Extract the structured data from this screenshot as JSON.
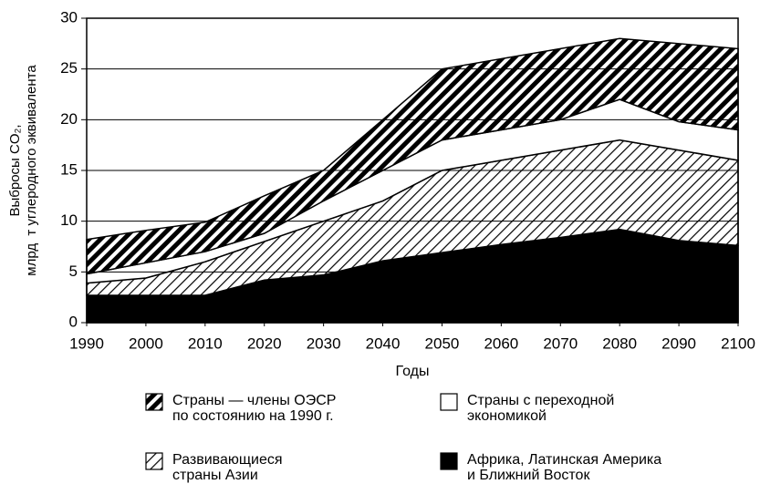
{
  "chart_data": {
    "type": "stacked-area",
    "x_label": "Годы",
    "y_label": "Выбросы CO₂,\nмлрд  т углеродного эквивалента",
    "x": [
      1990,
      2000,
      2010,
      2020,
      2030,
      2040,
      2050,
      2060,
      2070,
      2080,
      2090,
      2100
    ],
    "series": [
      {
        "name": "Африка, Латинская Америка\nи Ближний Восток",
        "color": "#000000",
        "pattern": "solid",
        "values": [
          2.7,
          2.7,
          2.7,
          4.2,
          4.7,
          6.1,
          6.9,
          7.7,
          8.4,
          9.2,
          8.1,
          7.6
        ]
      },
      {
        "name": "Развивающиеся\nстраны Азии",
        "color": "#000000",
        "pattern": "sparse-hatch",
        "values": [
          1.2,
          1.7,
          3.3,
          3.8,
          5.3,
          5.9,
          8.1,
          8.3,
          8.6,
          8.8,
          8.9,
          8.4
        ]
      },
      {
        "name": "Страны с переходной\nэкономикой",
        "color": "#ffffff",
        "pattern": "solid",
        "values": [
          0.9,
          1.5,
          1.0,
          0.8,
          2.0,
          3.0,
          3.0,
          3.0,
          3.0,
          4.0,
          2.8,
          3.0
        ]
      },
      {
        "name": "Страны — члены ОЭСР\nпо состоянию на 1990 г.",
        "color": "#000000",
        "pattern": "dense-hatch",
        "values": [
          3.4,
          3.2,
          2.9,
          3.7,
          3.0,
          5.0,
          7.0,
          7.0,
          7.0,
          6.0,
          7.7,
          8.0
        ]
      }
    ],
    "xlim": [
      1990,
      2100
    ],
    "xticks": [
      1990,
      2000,
      2010,
      2020,
      2030,
      2040,
      2050,
      2060,
      2070,
      2080,
      2090,
      2100
    ],
    "ylim": [
      0,
      30
    ],
    "yticks": [
      0,
      5,
      10,
      15,
      20,
      25,
      30
    ],
    "grid": true
  }
}
